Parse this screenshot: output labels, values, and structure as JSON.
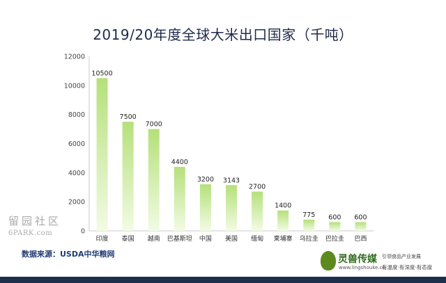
{
  "chart_data": {
    "type": "bar",
    "title": "2019/20年度全球大米出口国家（千吨）",
    "categories": [
      "印度",
      "泰国",
      "越南",
      "巴基斯坦",
      "中国",
      "美国",
      "缅甸",
      "柬埔寨",
      "乌拉圭",
      "巴拉圭",
      "巴西"
    ],
    "values": [
      10500,
      7500,
      7000,
      4400,
      3200,
      3143,
      2700,
      1400,
      775,
      600,
      600
    ],
    "data_labels": [
      "10500",
      "7500",
      "7000",
      "4400",
      "3200",
      "3143",
      "2700",
      "1400",
      "775",
      "600",
      "600"
    ],
    "ylim": [
      0,
      12000
    ],
    "yticks": [
      0,
      2000,
      4000,
      6000,
      8000,
      10000,
      12000
    ],
    "grid": false,
    "legend": "none",
    "bar_color_top": "#b5e07a",
    "bar_color_bottom": "#f2fbe4"
  },
  "source_text": "数据来源：USDA中华粮网",
  "watermark": {
    "top": "留园社区",
    "sub": "6PARK.com"
  },
  "logo": {
    "name": "灵兽传媒",
    "url": "www.lingshouke.cn",
    "slogan1": "引领食品产业发展",
    "slogan2": "有温度·有深度·有态度"
  },
  "colors": {
    "footer": "#1c2f4d",
    "source": "#1f3b73",
    "title": "#1f2a4a"
  }
}
